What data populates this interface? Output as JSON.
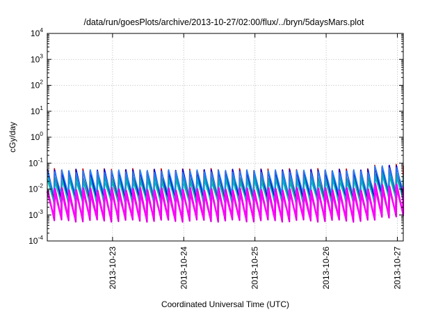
{
  "chart_data": {
    "type": "line",
    "title": "/data/run/goesPlots/archive/2013-10-27/02:00/flux/../bryn/5daysMars.plot",
    "xlabel": "Coordinated Universal Time (UTC)",
    "ylabel": "cGy/day",
    "y_scale": "log",
    "ylim": [
      0.0001,
      10000
    ],
    "xlim": [
      "2013-10-22 02:00",
      "2013-10-27 02:00"
    ],
    "grid": true,
    "legend": "none",
    "y_ticks": [
      {
        "base": "10",
        "exp": "-4",
        "value": 0.0001
      },
      {
        "base": "10",
        "exp": "-3",
        "value": 0.001
      },
      {
        "base": "10",
        "exp": "-2",
        "value": 0.01
      },
      {
        "base": "10",
        "exp": "-1",
        "value": 0.1
      },
      {
        "base": "10",
        "exp": "0",
        "value": 1
      },
      {
        "base": "10",
        "exp": "1",
        "value": 10
      },
      {
        "base": "10",
        "exp": "2",
        "value": 100
      },
      {
        "base": "10",
        "exp": "3",
        "value": 1000
      },
      {
        "base": "10",
        "exp": "4",
        "value": 10000
      }
    ],
    "x_ticks": [
      "2013-10-23",
      "2013-10-24",
      "2013-10-25",
      "2013-10-26",
      "2013-10-27"
    ],
    "pattern": {
      "description_note": "repeating sawtooth, about 10 cycles per day",
      "cycle_hours": 2.4,
      "enhanced_interval": [
        "2013-10-26 16:00",
        "2013-10-27 02:00"
      ]
    },
    "series": [
      {
        "color": "#cc0000",
        "peak": 0.055,
        "trough": 0.004
      },
      {
        "color": "#0000cc",
        "peak": 0.052,
        "trough": 0.0045
      },
      {
        "color": "#00a0a0",
        "peak": 0.03,
        "trough": 0.0025
      },
      {
        "color": "#00bbbb",
        "peak": 0.024,
        "trough": 0.0035
      },
      {
        "color": "#2080ff",
        "peak": 0.05,
        "trough": 0.006
      },
      {
        "color": "#e000e0",
        "peak": 0.01,
        "trough": 0.0006
      },
      {
        "color": "#ff00ff",
        "peak": 0.008,
        "trough": 0.0008
      }
    ]
  }
}
